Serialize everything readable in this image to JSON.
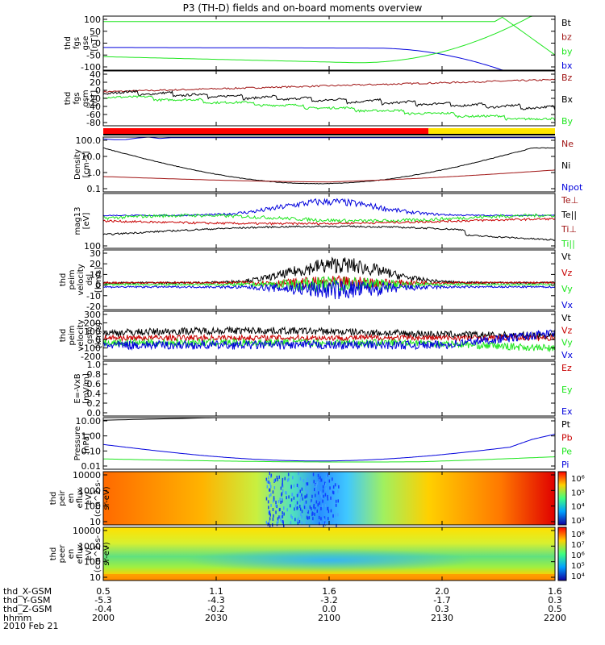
{
  "title": "P3 (TH-D) fields and on-board moments overview",
  "date": "2010 Feb 21",
  "colors": {
    "black": "#000000",
    "red": "#c80000",
    "green": "#1ee61e",
    "blue": "#0000dc",
    "darkred": "#a01414",
    "yellow": "#ffe600",
    "brightred": "#ff0000"
  },
  "chart_data": [
    {
      "type": "line",
      "name": "fgs-gse",
      "ylabel": [
        "thd",
        "fgs",
        "gse",
        "[nT]"
      ],
      "yticks": [
        "100",
        "50",
        "0",
        "-50",
        "-100"
      ],
      "ylim": [
        -110,
        105
      ],
      "legend": [
        {
          "label": "Bt",
          "color": "black"
        },
        {
          "label": "bz",
          "color": "darkred"
        },
        {
          "label": "by",
          "color": "green"
        },
        {
          "label": "bx",
          "color": "blue"
        }
      ]
    },
    {
      "type": "line",
      "name": "fgs-gsm",
      "ylabel": [
        "thd",
        "fgs",
        "gsm",
        "[nT]"
      ],
      "yticks": [
        "40",
        "20",
        "0",
        "-20",
        "-40",
        "-60",
        "-80"
      ],
      "ylim": [
        -90,
        45
      ],
      "legend": [
        {
          "label": "Bz",
          "color": "darkred"
        },
        {
          "label": "Bx",
          "color": "black"
        },
        {
          "label": "By",
          "color": "green"
        }
      ]
    },
    {
      "type": "bar",
      "name": "mode-bar",
      "segments": [
        {
          "from": 0,
          "to": 0.72,
          "color": "brightred"
        },
        {
          "from": 0.72,
          "to": 1,
          "color": "yellow"
        }
      ]
    },
    {
      "type": "line",
      "name": "density",
      "ylabel": [
        "Density",
        "[cm-3]"
      ],
      "yticks": [
        "100.0",
        "10.0",
        "1.0",
        "0.1"
      ],
      "scale": "log",
      "legend": [
        {
          "label": "Ne",
          "color": "darkred"
        },
        {
          "label": "Ni",
          "color": "black"
        },
        {
          "label": "Npot",
          "color": "blue"
        }
      ]
    },
    {
      "type": "line",
      "name": "temperature",
      "ylabel": [
        "mag13",
        "[eV]"
      ],
      "yticks": [
        "100"
      ],
      "legend": [
        {
          "label": "Te⊥",
          "color": "darkred"
        },
        {
          "label": "Te||",
          "color": "black"
        },
        {
          "label": "Ti⊥",
          "color": "darkred"
        },
        {
          "label": "Ti||",
          "color": "green"
        }
      ]
    },
    {
      "type": "line",
      "name": "velocity-dsl",
      "ylabel": [
        "thd",
        "peim",
        "velocity",
        "dsl",
        "[km/s]"
      ],
      "yticks": [
        "30",
        "20",
        "10",
        "0",
        "-10",
        "-20"
      ],
      "ylim": [
        -25,
        30
      ],
      "legend": [
        {
          "label": "Vt",
          "color": "black"
        },
        {
          "label": "Vz",
          "color": "red"
        },
        {
          "label": "Vy",
          "color": "green"
        },
        {
          "label": "Vx",
          "color": "blue"
        }
      ]
    },
    {
      "type": "line",
      "name": "velocity-gsm",
      "ylabel": [
        "thd",
        "peim",
        "velocity",
        "gsm",
        "[km/s]"
      ],
      "yticks": [
        "300",
        "200",
        "100",
        "0",
        "-100",
        "-200"
      ],
      "ylim": [
        -220,
        300
      ],
      "legend": [
        {
          "label": "Vt",
          "color": "black"
        },
        {
          "label": "Vz",
          "color": "red"
        },
        {
          "label": "Vy",
          "color": "green"
        },
        {
          "label": "Vx",
          "color": "blue"
        }
      ]
    },
    {
      "type": "line",
      "name": "efield",
      "ylabel": [
        "E=-VxB",
        "[mV/m]"
      ],
      "yticks": [
        "1.0",
        "0.8",
        "0.6",
        "0.4",
        "0.2",
        "0.0"
      ],
      "ylim": [
        0,
        1
      ],
      "legend": [
        {
          "label": "Ez",
          "color": "red"
        },
        {
          "label": "Ey",
          "color": "green"
        },
        {
          "label": "Ex",
          "color": "blue"
        }
      ]
    },
    {
      "type": "line",
      "name": "pressure",
      "ylabel": [
        "Pressure",
        "[nPa]"
      ],
      "yticks": [
        "10.00",
        "1.00",
        "0.10",
        "0.01"
      ],
      "scale": "log",
      "legend": [
        {
          "label": "Pt",
          "color": "black"
        },
        {
          "label": "Pb",
          "color": "red"
        },
        {
          "label": "Pe",
          "color": "green"
        },
        {
          "label": "Pi",
          "color": "blue"
        }
      ]
    },
    {
      "type": "heatmap",
      "name": "ion-spectrogram",
      "ylabel": [
        "thd",
        "peir",
        "en",
        "eflux",
        "eV/",
        "(cm^2-s-",
        "sr-eV)"
      ],
      "yticks": [
        "10000",
        "1000",
        "100",
        "10"
      ],
      "colorbar": [
        "10⁶",
        "10⁵",
        "10⁴",
        "10³"
      ]
    },
    {
      "type": "heatmap",
      "name": "electron-spectrogram",
      "ylabel": [
        "thd",
        "peer",
        "en",
        "eflux",
        "eV/",
        "(cm^2-s-",
        "sr-eV)"
      ],
      "yticks": [
        "10000",
        "1000",
        "100",
        "10"
      ],
      "colorbar": [
        "10⁸",
        "10⁷",
        "10⁶",
        "10⁵",
        "10⁴"
      ]
    }
  ],
  "xaxis": {
    "labels": [
      "thd_X-GSM",
      "thd_Y-GSM",
      "thd_Z-GSM",
      "hhmm"
    ],
    "rows": [
      [
        "0.5",
        "1.1",
        "1.6",
        "2.0",
        "1.6"
      ],
      [
        "-5.3",
        "-4.3",
        "-3.2",
        "-1.7",
        "0.3"
      ],
      [
        "-0.4",
        "-0.2",
        "0.0",
        "0.3",
        "0.5"
      ],
      [
        "2000",
        "2030",
        "2100",
        "2130",
        "2200"
      ]
    ]
  }
}
